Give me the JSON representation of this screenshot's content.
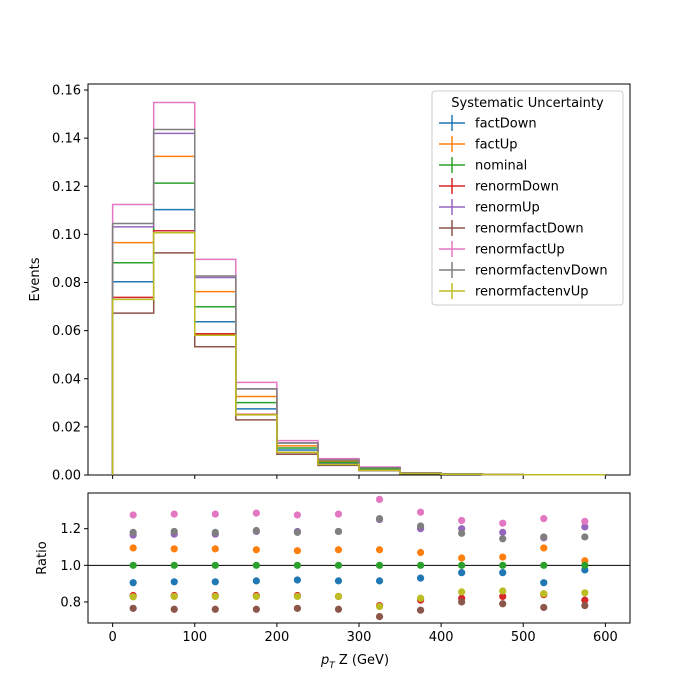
{
  "chart_data": [
    {
      "type": "line",
      "step": true,
      "ylabel": "Events",
      "ylim": [
        0,
        0.1625
      ],
      "xlim": [
        -30,
        630
      ],
      "yticks": [
        "0.00",
        "0.02",
        "0.04",
        "0.06",
        "0.08",
        "0.10",
        "0.12",
        "0.14",
        "0.16"
      ],
      "ytick_values": [
        0,
        0.02,
        0.04,
        0.06,
        0.08,
        0.1,
        0.12,
        0.14,
        0.16
      ],
      "bin_edges": [
        0,
        50,
        100,
        150,
        200,
        250,
        300,
        350,
        400,
        450,
        500,
        550,
        600
      ],
      "legend": {
        "title": "Systematic Uncertainty",
        "placement": "top-right"
      },
      "series": [
        {
          "name": "factDown",
          "color": "#1f77b4",
          "values": [
            0.0803,
            0.1103,
            0.0637,
            0.0275,
            0.0104,
            0.0049,
            0.0023,
            0.0007,
            0.0004,
            0.0002,
            0.0001,
            0.0001
          ]
        },
        {
          "name": "factUp",
          "color": "#ff7f0e",
          "values": [
            0.0966,
            0.1324,
            0.0762,
            0.0326,
            0.0121,
            0.0057,
            0.0027,
            0.0008,
            0.0004,
            0.0002,
            0.0001,
            0.0001
          ]
        },
        {
          "name": "nominal",
          "color": "#2ca02c",
          "values": [
            0.0882,
            0.1213,
            0.0699,
            0.0301,
            0.0112,
            0.0053,
            0.0025,
            0.0007,
            0.0004,
            0.0002,
            0.0001,
            0.0001
          ]
        },
        {
          "name": "renormDown",
          "color": "#d62728",
          "values": [
            0.0738,
            0.1015,
            0.0587,
            0.0252,
            0.0094,
            0.0044,
            0.002,
            0.0006,
            0.0003,
            0.0002,
            0.0001,
            0.0001
          ]
        },
        {
          "name": "renormUp",
          "color": "#9467bd",
          "values": [
            0.1031,
            0.142,
            0.0821,
            0.0358,
            0.0133,
            0.0063,
            0.003,
            0.0009,
            0.0005,
            0.0002,
            0.0001,
            0.0001
          ]
        },
        {
          "name": "renormfactDown",
          "color": "#8c564b",
          "values": [
            0.0673,
            0.0923,
            0.0533,
            0.0229,
            0.0086,
            0.004,
            0.0018,
            0.0005,
            0.0003,
            0.0002,
            0.0001,
            0.0001
          ]
        },
        {
          "name": "renormfactUp",
          "color": "#e377c2",
          "values": [
            0.1124,
            0.1548,
            0.0896,
            0.0385,
            0.0143,
            0.0068,
            0.0033,
            0.0009,
            0.0005,
            0.0002,
            0.0001,
            0.0001
          ]
        },
        {
          "name": "renormfactenvDown",
          "color": "#7f7f7f",
          "values": [
            0.1045,
            0.1436,
            0.0827,
            0.0358,
            0.0133,
            0.0063,
            0.003,
            0.0009,
            0.0005,
            0.0002,
            0.0001,
            0.0001
          ]
        },
        {
          "name": "renormfactenvUp",
          "color": "#bcbd22",
          "values": [
            0.073,
            0.1007,
            0.0581,
            0.025,
            0.0094,
            0.0044,
            0.002,
            0.0006,
            0.0003,
            0.0002,
            0.0001,
            0.0001
          ]
        }
      ]
    },
    {
      "type": "scatter",
      "ylabel": "Ratio",
      "xlabel": "p_T Z (GeV)",
      "xlabel_parts": {
        "main": "p",
        "sub": "T",
        "rest": " Z (GeV)"
      },
      "xlim": [
        -30,
        630
      ],
      "ylim": [
        0.685,
        1.395
      ],
      "xticks": [
        "0",
        "100",
        "200",
        "300",
        "400",
        "500",
        "600"
      ],
      "xtick_values": [
        0,
        100,
        200,
        300,
        400,
        500,
        600
      ],
      "yticks": [
        "0.8",
        "1.0",
        "1.2"
      ],
      "ytick_values": [
        0.8,
        1.0,
        1.2
      ],
      "reference_line": 1.0,
      "x": [
        25,
        75,
        125,
        175,
        225,
        275,
        325,
        375,
        425,
        475,
        525,
        575
      ],
      "series": [
        {
          "name": "factDown",
          "color": "#1f77b4",
          "values": [
            0.905,
            0.91,
            0.91,
            0.915,
            0.92,
            0.915,
            0.915,
            0.93,
            0.96,
            0.96,
            0.905,
            0.975
          ]
        },
        {
          "name": "factUp",
          "color": "#ff7f0e",
          "values": [
            1.095,
            1.09,
            1.09,
            1.085,
            1.08,
            1.085,
            1.085,
            1.07,
            1.04,
            1.045,
            1.095,
            1.025
          ]
        },
        {
          "name": "nominal",
          "color": "#2ca02c",
          "values": [
            1.0,
            1.0,
            1.0,
            1.0,
            1.0,
            1.0,
            1.0,
            1.0,
            1.0,
            1.0,
            1.0,
            1.0
          ]
        },
        {
          "name": "renormDown",
          "color": "#d62728",
          "values": [
            0.835,
            0.835,
            0.835,
            0.835,
            0.835,
            0.83,
            0.78,
            0.81,
            0.82,
            0.83,
            0.84,
            0.81
          ]
        },
        {
          "name": "renormUp",
          "color": "#9467bd",
          "values": [
            1.165,
            1.17,
            1.17,
            1.185,
            1.185,
            1.185,
            1.25,
            1.2,
            1.2,
            1.18,
            1.15,
            1.21
          ]
        },
        {
          "name": "renormfactDown",
          "color": "#8c564b",
          "values": [
            0.765,
            0.76,
            0.76,
            0.76,
            0.765,
            0.76,
            0.72,
            0.755,
            0.8,
            0.79,
            0.77,
            0.78
          ]
        },
        {
          "name": "renormfactUp",
          "color": "#e377c2",
          "values": [
            1.275,
            1.28,
            1.28,
            1.285,
            1.275,
            1.28,
            1.36,
            1.29,
            1.245,
            1.23,
            1.255,
            1.24
          ]
        },
        {
          "name": "renormfactenvDown",
          "color": "#7f7f7f",
          "values": [
            1.18,
            1.185,
            1.18,
            1.19,
            1.18,
            1.185,
            1.255,
            1.215,
            1.175,
            1.145,
            1.155,
            1.155
          ]
        },
        {
          "name": "renormfactenvUp",
          "color": "#bcbd22",
          "values": [
            0.828,
            0.83,
            0.83,
            0.83,
            0.83,
            0.83,
            0.775,
            0.82,
            0.855,
            0.86,
            0.845,
            0.85
          ]
        }
      ]
    }
  ]
}
